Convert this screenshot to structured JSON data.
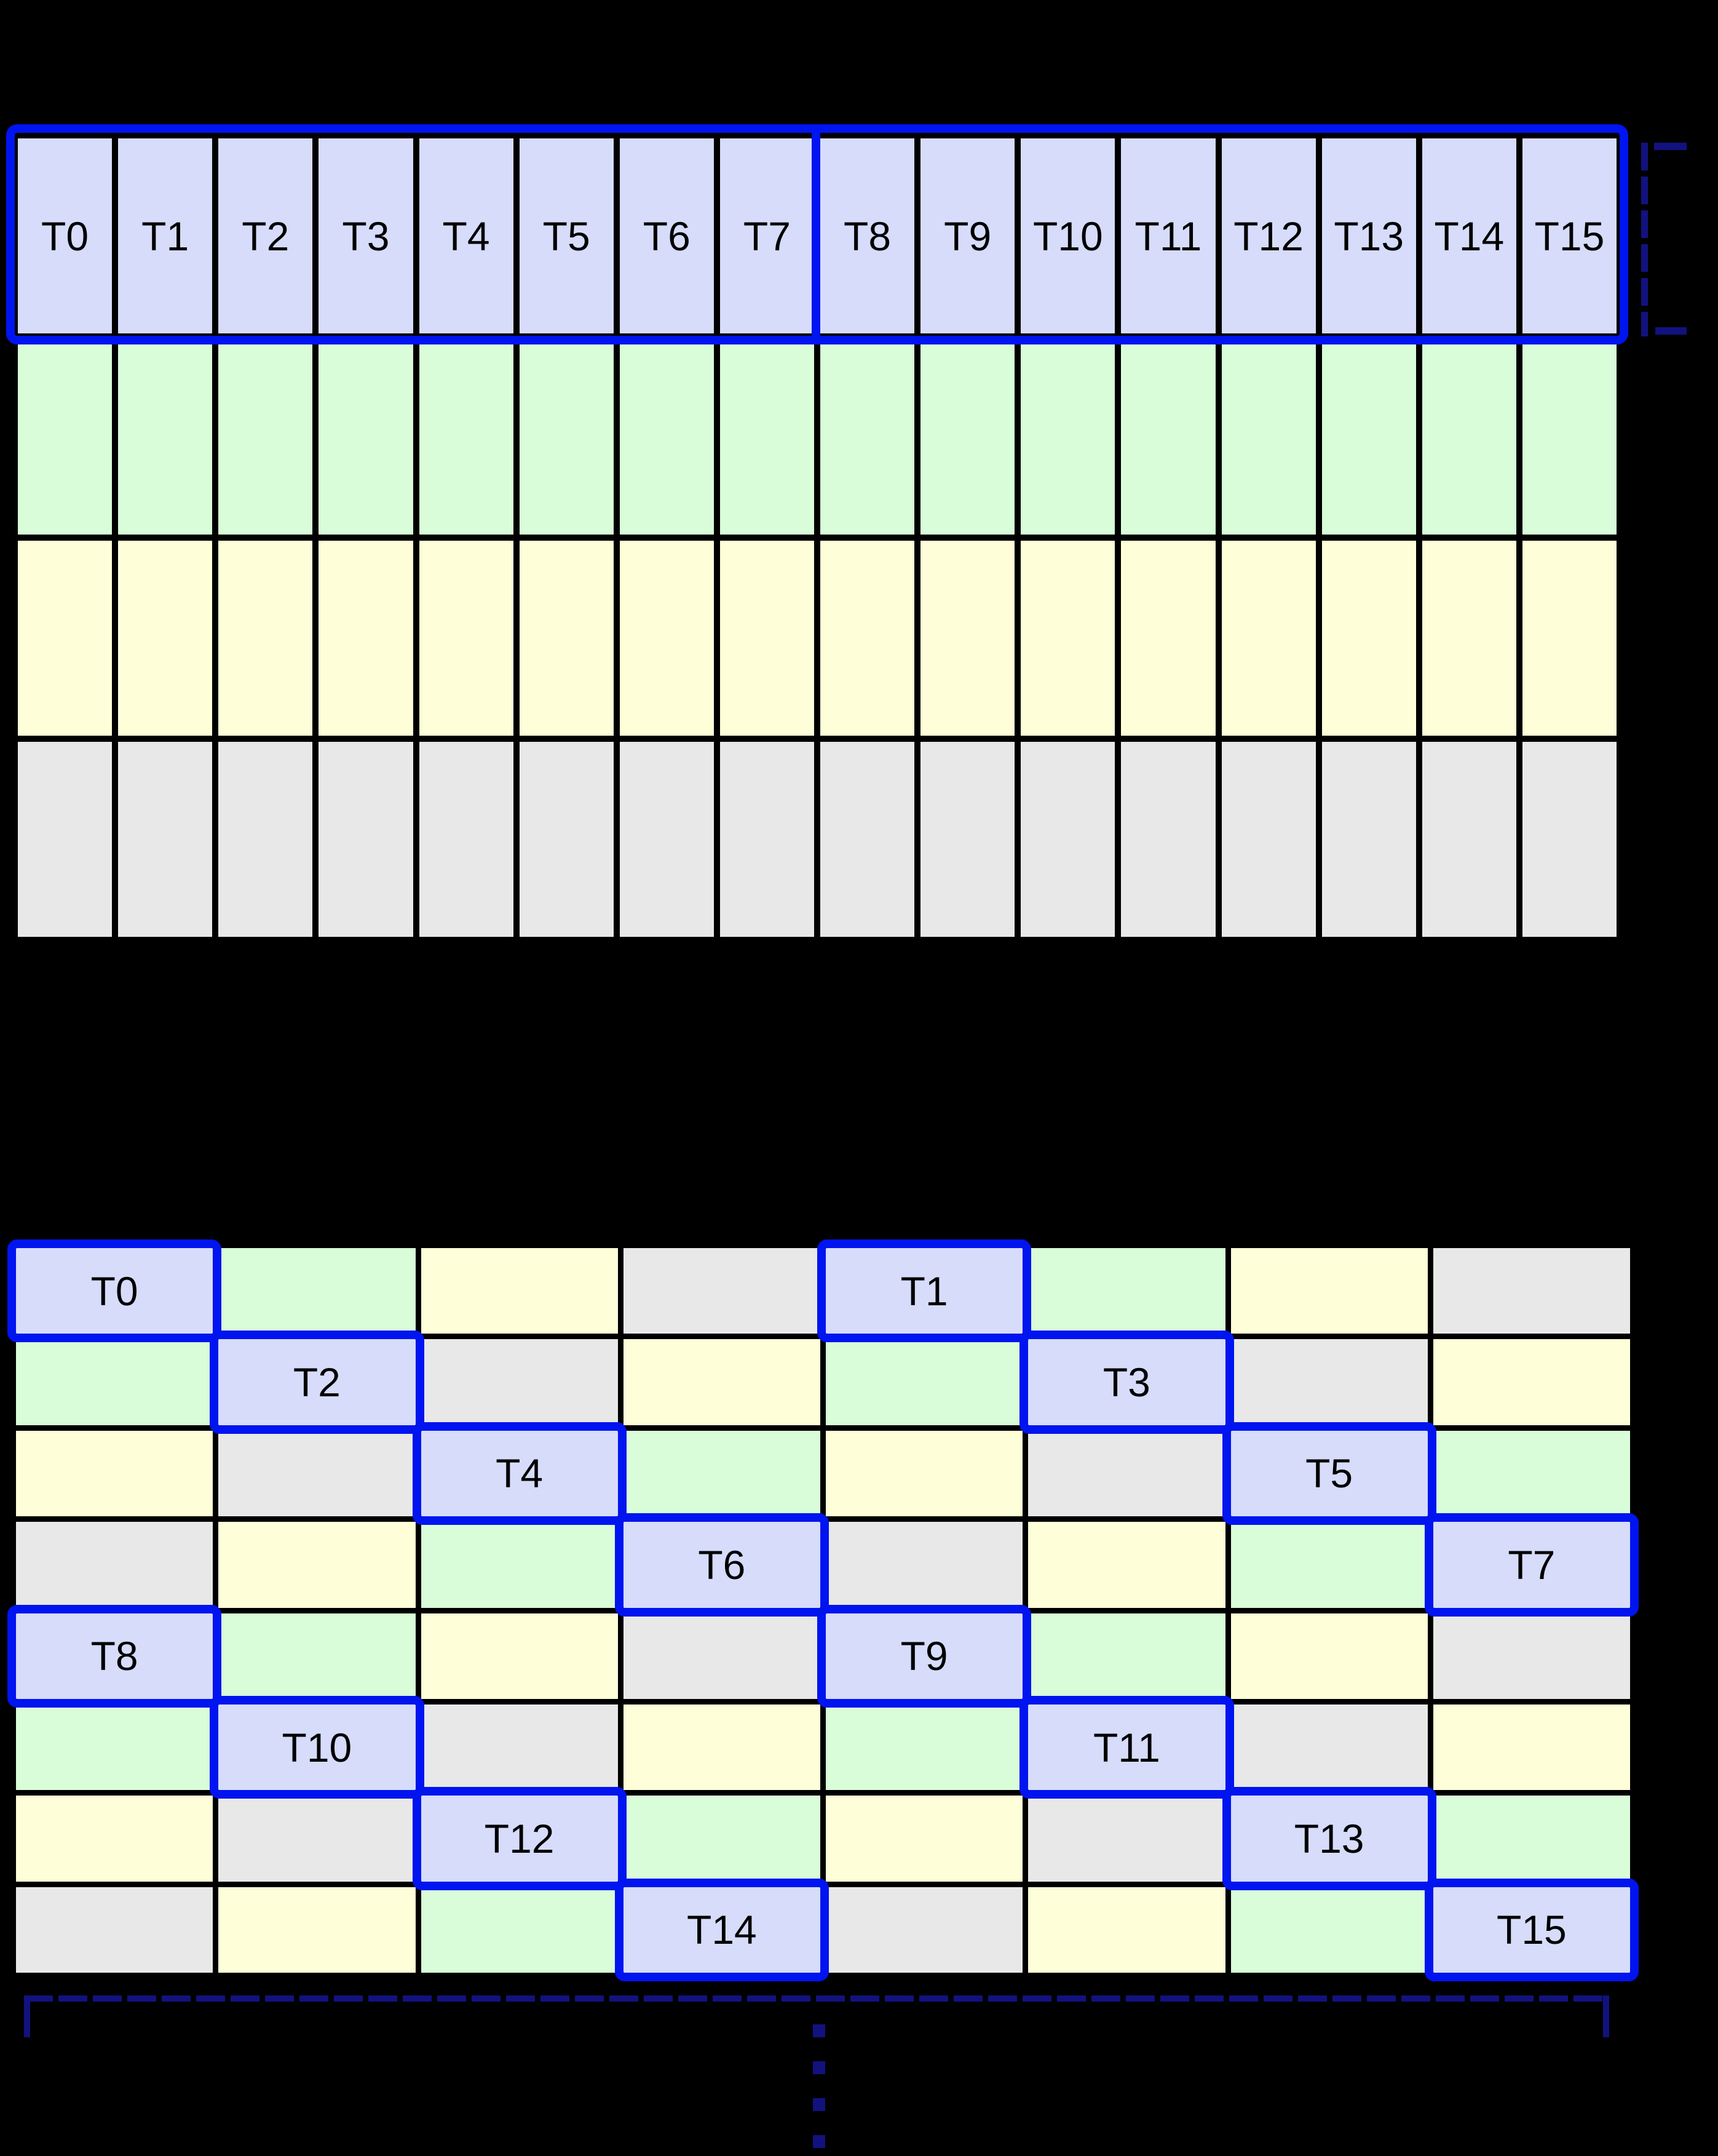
{
  "canvas": {
    "background": "#000000"
  },
  "palette": {
    "lavender": "#d6dcfa",
    "green": "#d8fdd8",
    "yellow": "#feffd8",
    "gray": "#e8e8e9",
    "blue": "#0014f0",
    "navy": "#12127f",
    "grid_line": "#000000",
    "label": "#000000"
  },
  "top_grid": {
    "columns": 16,
    "rows": 4,
    "row_colors": [
      "lavender",
      "green",
      "yellow",
      "gray"
    ],
    "labels": [
      "T0",
      "T1",
      "T2",
      "T3",
      "T4",
      "T5",
      "T6",
      "T7",
      "T8",
      "T9",
      "T10",
      "T11",
      "T12",
      "T13",
      "T14",
      "T15"
    ]
  },
  "bottom_grid": {
    "columns": 8,
    "rows": [
      [
        {
          "color": "lavender",
          "label": "T0",
          "highlight": true
        },
        {
          "color": "green",
          "label": ""
        },
        {
          "color": "yellow",
          "label": ""
        },
        {
          "color": "gray",
          "label": ""
        },
        {
          "color": "lavender",
          "label": "T1",
          "highlight": true
        },
        {
          "color": "green",
          "label": ""
        },
        {
          "color": "yellow",
          "label": ""
        },
        {
          "color": "gray",
          "label": ""
        }
      ],
      [
        {
          "color": "green",
          "label": ""
        },
        {
          "color": "lavender",
          "label": "T2",
          "highlight": true
        },
        {
          "color": "gray",
          "label": ""
        },
        {
          "color": "yellow",
          "label": ""
        },
        {
          "color": "green",
          "label": ""
        },
        {
          "color": "lavender",
          "label": "T3",
          "highlight": true
        },
        {
          "color": "gray",
          "label": ""
        },
        {
          "color": "yellow",
          "label": ""
        }
      ],
      [
        {
          "color": "yellow",
          "label": ""
        },
        {
          "color": "gray",
          "label": ""
        },
        {
          "color": "lavender",
          "label": "T4",
          "highlight": true
        },
        {
          "color": "green",
          "label": ""
        },
        {
          "color": "yellow",
          "label": ""
        },
        {
          "color": "gray",
          "label": ""
        },
        {
          "color": "lavender",
          "label": "T5",
          "highlight": true
        },
        {
          "color": "green",
          "label": ""
        }
      ],
      [
        {
          "color": "gray",
          "label": ""
        },
        {
          "color": "yellow",
          "label": ""
        },
        {
          "color": "green",
          "label": ""
        },
        {
          "color": "lavender",
          "label": "T6",
          "highlight": true
        },
        {
          "color": "gray",
          "label": ""
        },
        {
          "color": "yellow",
          "label": ""
        },
        {
          "color": "green",
          "label": ""
        },
        {
          "color": "lavender",
          "label": "T7",
          "highlight": true
        }
      ],
      [
        {
          "color": "lavender",
          "label": "T8",
          "highlight": true
        },
        {
          "color": "green",
          "label": ""
        },
        {
          "color": "yellow",
          "label": ""
        },
        {
          "color": "gray",
          "label": ""
        },
        {
          "color": "lavender",
          "label": "T9",
          "highlight": true
        },
        {
          "color": "green",
          "label": ""
        },
        {
          "color": "yellow",
          "label": ""
        },
        {
          "color": "gray",
          "label": ""
        }
      ],
      [
        {
          "color": "green",
          "label": ""
        },
        {
          "color": "lavender",
          "label": "T10",
          "highlight": true
        },
        {
          "color": "gray",
          "label": ""
        },
        {
          "color": "yellow",
          "label": ""
        },
        {
          "color": "green",
          "label": ""
        },
        {
          "color": "lavender",
          "label": "T11",
          "highlight": true
        },
        {
          "color": "gray",
          "label": ""
        },
        {
          "color": "yellow",
          "label": ""
        }
      ],
      [
        {
          "color": "yellow",
          "label": ""
        },
        {
          "color": "gray",
          "label": ""
        },
        {
          "color": "lavender",
          "label": "T12",
          "highlight": true
        },
        {
          "color": "green",
          "label": ""
        },
        {
          "color": "yellow",
          "label": ""
        },
        {
          "color": "gray",
          "label": ""
        },
        {
          "color": "lavender",
          "label": "T13",
          "highlight": true
        },
        {
          "color": "green",
          "label": ""
        }
      ],
      [
        {
          "color": "gray",
          "label": ""
        },
        {
          "color": "yellow",
          "label": ""
        },
        {
          "color": "green",
          "label": ""
        },
        {
          "color": "lavender",
          "label": "T14",
          "highlight": true
        },
        {
          "color": "gray",
          "label": ""
        },
        {
          "color": "yellow",
          "label": ""
        },
        {
          "color": "green",
          "label": ""
        },
        {
          "color": "lavender",
          "label": "T15",
          "highlight": true
        }
      ]
    ]
  }
}
